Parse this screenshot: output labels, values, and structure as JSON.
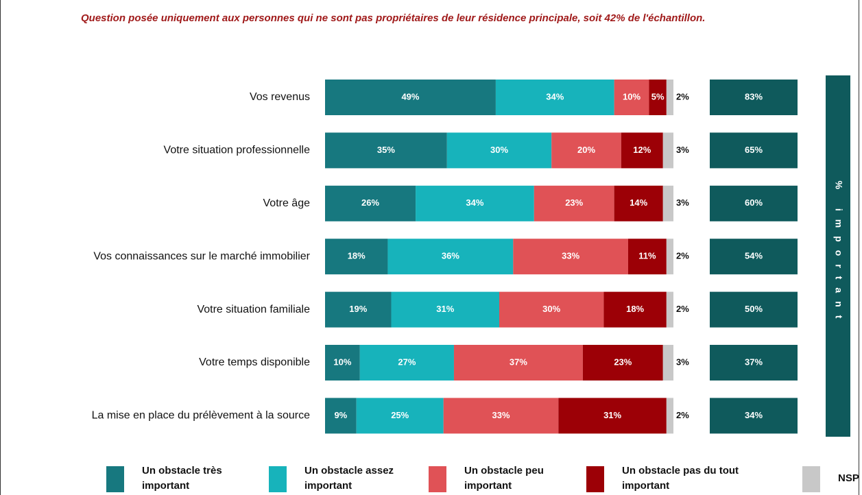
{
  "chart_data": {
    "type": "bar",
    "orientation": "horizontal",
    "stacked": true,
    "note": "Question posée uniquement aux personnes qui ne sont pas propriétaires de leur résidence principale, soit 42% de l'échantillon.",
    "categories": [
      "Vos revenus",
      "Votre situation professionnelle",
      "Votre âge",
      "Vos connaissances sur le marché immobilier",
      "Votre situation familiale",
      "Votre temps disponible",
      "La mise en place du prélèvement à la source"
    ],
    "xlim": [
      0,
      100
    ],
    "series": [
      {
        "name": "Un obstacle très important",
        "color": "#17787f",
        "values": [
          49,
          35,
          26,
          18,
          19,
          10,
          9
        ],
        "value_labels": [
          "49%",
          "35%",
          "26%",
          "18%",
          "19%",
          "10%",
          "9%"
        ]
      },
      {
        "name": "Un obstacle assez important",
        "color": "#17b3bb",
        "values": [
          34,
          30,
          34,
          36,
          31,
          27,
          25
        ],
        "value_labels": [
          "34%",
          "30%",
          "34%",
          "36%",
          "31%",
          "27%",
          "25%"
        ]
      },
      {
        "name": "Un obstacle peu important",
        "color": "#e05256",
        "values": [
          10,
          20,
          23,
          33,
          30,
          37,
          33
        ],
        "value_labels": [
          "10%",
          "20%",
          "23%",
          "33%",
          "30%",
          "37%",
          "33%"
        ]
      },
      {
        "name": "Un obstacle pas du tout important",
        "color": "#9c0006",
        "values": [
          5,
          12,
          14,
          11,
          18,
          23,
          31
        ],
        "value_labels": [
          "5%",
          "12%",
          "14%",
          "11%",
          "18%",
          "23%",
          "31%"
        ]
      },
      {
        "name": "NSP",
        "color": "#c8c8c8",
        "values": [
          2,
          3,
          3,
          2,
          2,
          3,
          2
        ],
        "value_labels": [
          "2%",
          "3%",
          "3%",
          "2%",
          "2%",
          "3%",
          "2%"
        ]
      }
    ],
    "totals": {
      "label": "% important",
      "color": "#0f5a5c",
      "values": [
        83,
        65,
        60,
        54,
        50,
        37,
        34
      ],
      "value_labels": [
        "83%",
        "65%",
        "60%",
        "54%",
        "50%",
        "37%",
        "34%"
      ]
    }
  }
}
